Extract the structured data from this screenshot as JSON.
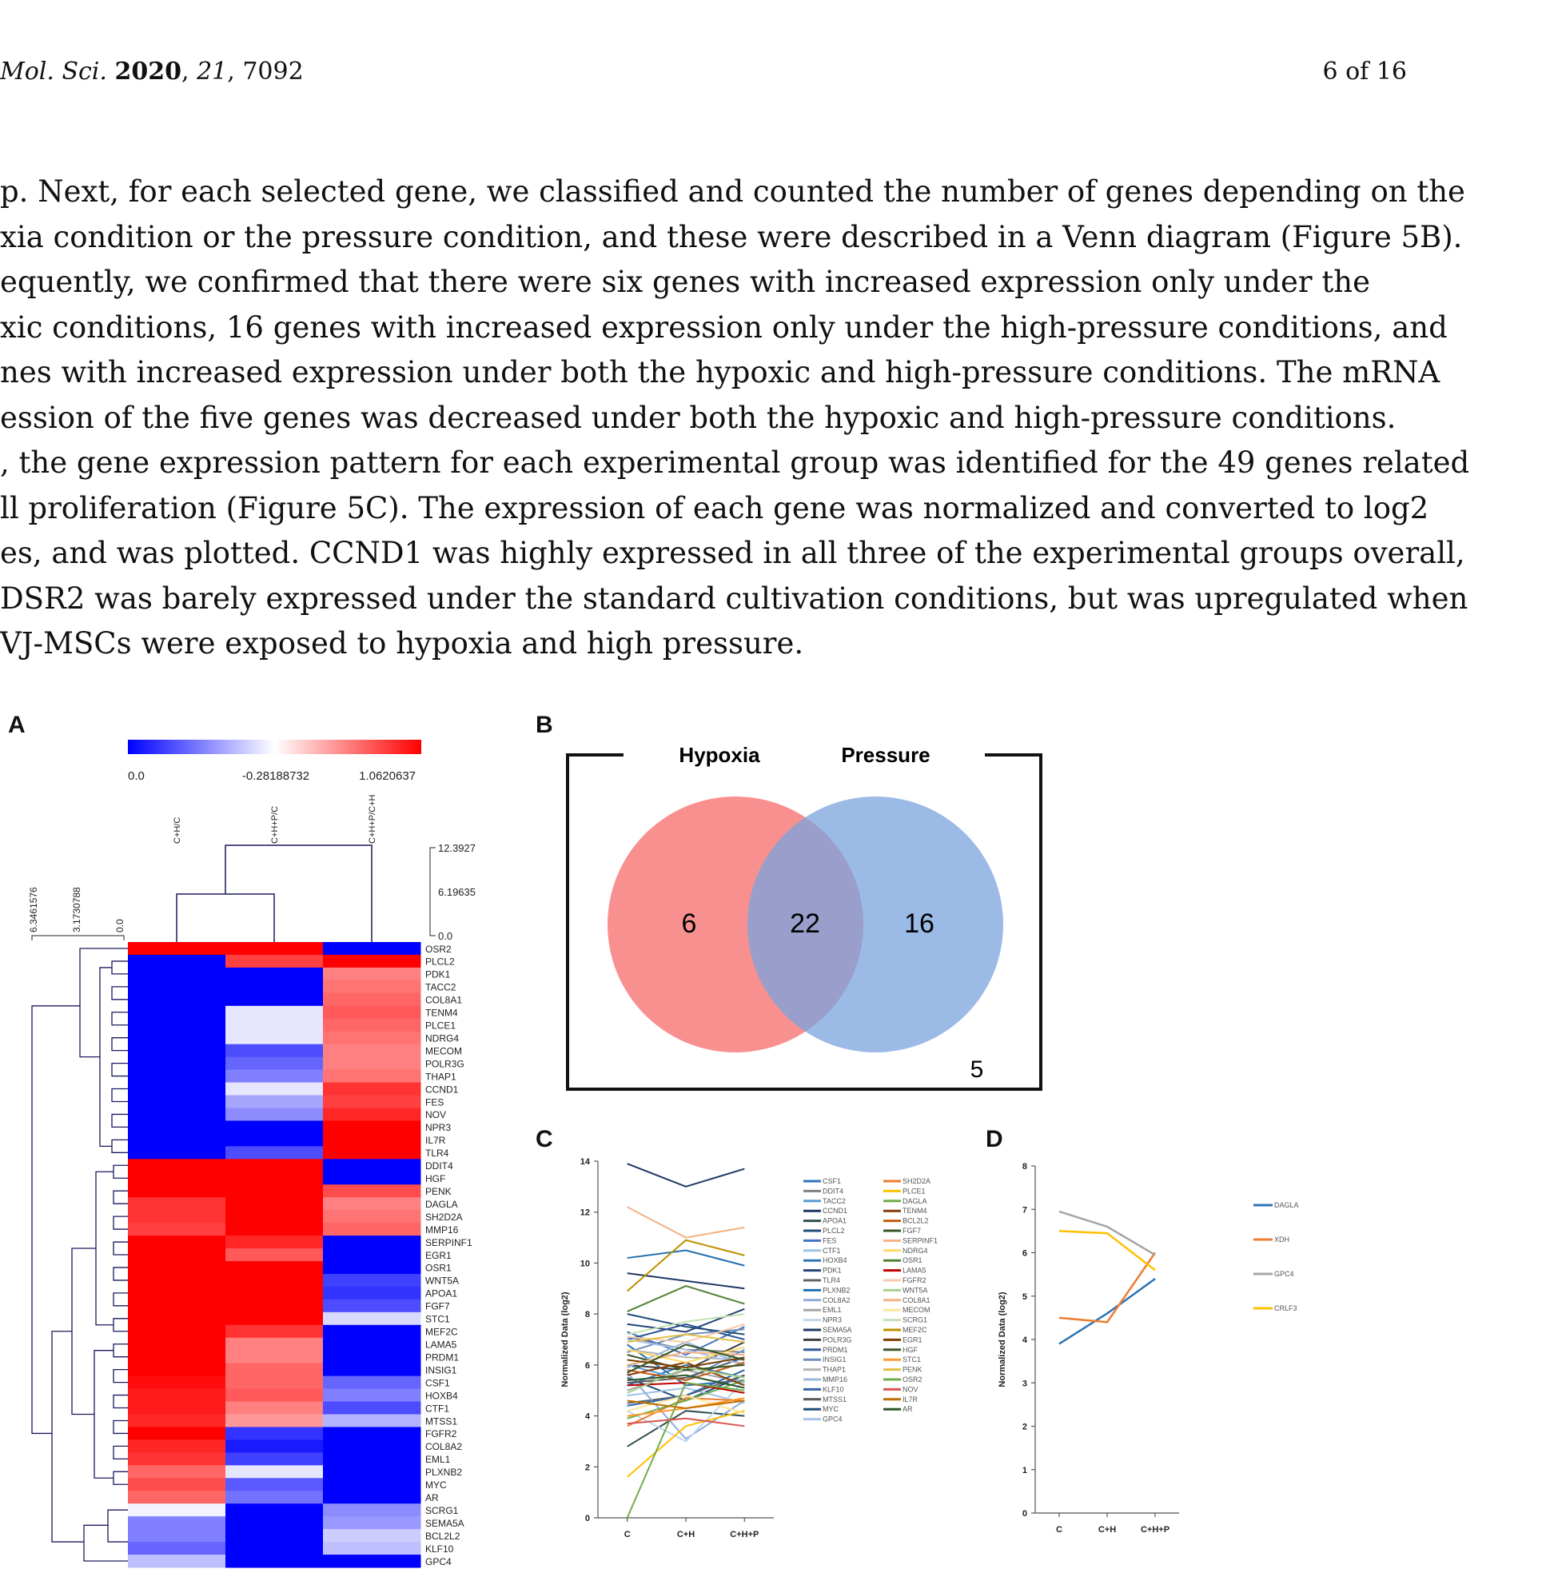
{
  "header": {
    "journal": "Mol. Sci.",
    "year": "2020",
    "volume": "21",
    "article": "7092",
    "page": "6 of 16"
  },
  "paragraph_lines": [
    "p. Next, for each selected gene, we classified and counted the number of genes depending on the",
    "xia condition or the pressure condition, and these were described in a Venn diagram (Figure 5B).",
    "equently, we confirmed that there were six genes with increased expression only under the",
    "xic conditions, 16 genes with increased expression only under the high-pressure conditions, and",
    "nes with increased expression under both the hypoxic and high-pressure conditions. The mRNA",
    "ession of the five genes was decreased under both the hypoxic and high-pressure conditions.",
    ", the gene expression pattern for each experimental group was identified for the 49 genes related",
    "ll proliferation (Figure 5C). The expression of each gene was normalized and converted to log2",
    "es, and was plotted. CCND1 was highly expressed in all three of the experimental groups overall,",
    "DSR2 was barely expressed under the standard cultivation conditions, but was upregulated when",
    "VJ-MSCs were exposed to hypoxia and high pressure."
  ],
  "panels": {
    "a": "A",
    "b": "B",
    "c": "C",
    "d": "D"
  },
  "heatmap": {
    "scale_labels": [
      "0.0",
      "-0.28188732",
      "1.0620637"
    ],
    "columns": [
      "C+H/C",
      "C+H+P/C",
      "C+H+P/C+H"
    ],
    "col_dendro_ticks": [
      "12.3927",
      "6.19635",
      "0.0"
    ],
    "row_dendro_ticks": [
      "6.3461576",
      "3.1730788",
      "0.0"
    ],
    "colors": {
      "low": "#0000ff",
      "mid": "#ffffff",
      "high": "#ff0000"
    },
    "genes": [
      "OSR2",
      "PLCL2",
      "PDK1",
      "TACC2",
      "COL8A1",
      "TENM4",
      "PLCE1",
      "NDRG4",
      "MECOM",
      "POLR3G",
      "THAP1",
      "CCND1",
      "FES",
      "NOV",
      "NPR3",
      "IL7R",
      "TLR4",
      "DDIT4",
      "HGF",
      "PENK",
      "DAGLA",
      "SH2D2A",
      "MMP16",
      "SERPINF1",
      "EGR1",
      "OSR1",
      "WNT5A",
      "APOA1",
      "FGF7",
      "STC1",
      "MEF2C",
      "LAMA5",
      "PRDM1",
      "INSIG1",
      "CSF1",
      "HOXB4",
      "CTF1",
      "MTSS1",
      "FGFR2",
      "COL8A2",
      "EML1",
      "PLXNB2",
      "MYC",
      "AR",
      "SCRG1",
      "SEMA5A",
      "BCL2L2",
      "KLF10",
      "GPC4"
    ],
    "values": [
      [
        1.0,
        1.0,
        -1.0
      ],
      [
        -1.0,
        0.75,
        1.0
      ],
      [
        -1.0,
        -1.0,
        0.5
      ],
      [
        -1.0,
        -1.0,
        0.55
      ],
      [
        -1.0,
        -1.0,
        0.6
      ],
      [
        -1.0,
        -0.1,
        0.65
      ],
      [
        -1.0,
        -0.1,
        0.6
      ],
      [
        -1.0,
        -0.1,
        0.55
      ],
      [
        -1.0,
        -0.7,
        0.5
      ],
      [
        -1.0,
        -0.6,
        0.5
      ],
      [
        -1.0,
        -0.5,
        0.55
      ],
      [
        -1.0,
        -0.1,
        0.8
      ],
      [
        -1.0,
        -0.35,
        0.75
      ],
      [
        -1.0,
        -0.45,
        0.85
      ],
      [
        -1.0,
        -1.0,
        1.0
      ],
      [
        -1.0,
        -1.0,
        1.0
      ],
      [
        -1.0,
        -0.7,
        1.0
      ],
      [
        1.0,
        1.0,
        -1.0
      ],
      [
        1.0,
        1.0,
        -1.0
      ],
      [
        1.0,
        1.0,
        0.7
      ],
      [
        0.8,
        1.0,
        0.5
      ],
      [
        0.8,
        1.0,
        0.55
      ],
      [
        0.75,
        1.0,
        0.6
      ],
      [
        1.0,
        0.85,
        -1.0
      ],
      [
        1.0,
        0.65,
        -1.0
      ],
      [
        1.0,
        1.0,
        -1.0
      ],
      [
        1.0,
        1.0,
        -0.75
      ],
      [
        1.0,
        1.0,
        -0.8
      ],
      [
        1.0,
        1.0,
        -0.7
      ],
      [
        1.0,
        1.0,
        -0.15
      ],
      [
        1.0,
        0.8,
        -1.0
      ],
      [
        1.0,
        0.5,
        -1.0
      ],
      [
        1.0,
        0.5,
        -1.0
      ],
      [
        1.0,
        0.6,
        -1.0
      ],
      [
        0.95,
        0.6,
        -0.6
      ],
      [
        0.9,
        0.65,
        -0.5
      ],
      [
        0.9,
        0.5,
        -0.7
      ],
      [
        0.85,
        0.4,
        -0.3
      ],
      [
        1.0,
        -0.8,
        -1.0
      ],
      [
        0.85,
        -0.9,
        -1.0
      ],
      [
        0.8,
        -0.75,
        -1.0
      ],
      [
        0.6,
        -0.1,
        -1.0
      ],
      [
        0.7,
        -0.65,
        -1.0
      ],
      [
        0.6,
        -0.55,
        -1.0
      ],
      [
        -0.05,
        -1.0,
        -0.45
      ],
      [
        -0.5,
        -1.0,
        -0.4
      ],
      [
        -0.5,
        -1.0,
        -0.2
      ],
      [
        -0.6,
        -1.0,
        -0.25
      ],
      [
        -0.25,
        -1.0,
        -1.0
      ]
    ]
  },
  "venn": {
    "left_label": "Hypoxia",
    "right_label": "Pressure",
    "left_only": "6",
    "overlap": "22",
    "right_only": "16",
    "outside": "5",
    "left_color": "#f87c7c",
    "right_color": "#7aa3de"
  },
  "chart_data": [
    {
      "type": "line",
      "panel": "C",
      "categories": [
        "C",
        "C+H",
        "C+H+P"
      ],
      "ylabel": "Normalized Data (log2)",
      "ylim": [
        0,
        14
      ],
      "yticks": [
        "0",
        "2",
        "4",
        "6",
        "8",
        "10",
        "12",
        "14"
      ],
      "series": [
        {
          "name": "CSF1",
          "color": "#2e75b6",
          "values": [
            5.2,
            6.0,
            5.5
          ]
        },
        {
          "name": "DDIT4",
          "color": "#7f7f7f",
          "values": [
            7.1,
            6.6,
            6.5
          ]
        },
        {
          "name": "TACC2",
          "color": "#5b9bd5",
          "values": [
            6.0,
            5.4,
            6.6
          ]
        },
        {
          "name": "CCND1",
          "color": "#1f3864",
          "values": [
            13.9,
            13.0,
            13.7
          ]
        },
        {
          "name": "APOA1",
          "color": "#2f4f4f",
          "values": [
            2.8,
            4.2,
            4.0
          ]
        },
        {
          "name": "PLCL2",
          "color": "#1f4e79",
          "values": [
            5.5,
            4.6,
            5.6
          ]
        },
        {
          "name": "FES",
          "color": "#4472c4",
          "values": [
            7.3,
            6.4,
            7.5
          ]
        },
        {
          "name": "CTF1",
          "color": "#9dc3e6",
          "values": [
            4.8,
            5.1,
            4.5
          ]
        },
        {
          "name": "HOXB4",
          "color": "#2e75b6",
          "values": [
            6.8,
            5.2,
            5.4
          ]
        },
        {
          "name": "PDK1",
          "color": "#264478",
          "values": [
            7.6,
            7.3,
            8.2
          ]
        },
        {
          "name": "TLR4",
          "color": "#636363",
          "values": [
            4.5,
            4.8,
            5.6
          ]
        },
        {
          "name": "PLXNB2",
          "color": "#1f6fb2",
          "values": [
            10.2,
            10.5,
            9.9
          ]
        },
        {
          "name": "COL8A2",
          "color": "#8faadc",
          "values": [
            5.7,
            3.1,
            4.6
          ]
        },
        {
          "name": "EML1",
          "color": "#a5a5a5",
          "values": [
            5.0,
            5.8,
            5.3
          ]
        },
        {
          "name": "NPR3",
          "color": "#bdd7ee",
          "values": [
            4.2,
            3.0,
            5.4
          ]
        },
        {
          "name": "SEMA5A",
          "color": "#203864",
          "values": [
            9.6,
            9.3,
            9.0
          ]
        },
        {
          "name": "POLR3G",
          "color": "#404040",
          "values": [
            6.0,
            5.8,
            6.9
          ]
        },
        {
          "name": "PRDM1",
          "color": "#2f5597",
          "values": [
            7.0,
            7.6,
            7.0
          ]
        },
        {
          "name": "INSIG1",
          "color": "#6f8fba",
          "values": [
            6.5,
            7.2,
            7.4
          ]
        },
        {
          "name": "THAP1",
          "color": "#b4b4b4",
          "values": [
            6.6,
            6.3,
            6.2
          ]
        },
        {
          "name": "MMP16",
          "color": "#9ab7dc",
          "values": [
            5.9,
            6.9,
            6.0
          ]
        },
        {
          "name": "KLF10",
          "color": "#3465a4",
          "values": [
            4.4,
            4.8,
            5.8
          ]
        },
        {
          "name": "MTSS1",
          "color": "#595959",
          "values": [
            5.3,
            5.5,
            6.3
          ]
        },
        {
          "name": "MYC",
          "color": "#1f4e79",
          "values": [
            8.0,
            7.5,
            7.2
          ]
        },
        {
          "name": "GPC4",
          "color": "#a9c4eb",
          "values": [
            7.0,
            6.6,
            6.0
          ]
        },
        {
          "name": "SH2D2A",
          "color": "#ed7d31",
          "values": [
            3.6,
            4.7,
            4.6
          ]
        },
        {
          "name": "PLCE1",
          "color": "#ffc000",
          "values": [
            1.6,
            3.6,
            4.2
          ]
        },
        {
          "name": "DAGLA",
          "color": "#70ad47",
          "values": [
            3.9,
            4.6,
            5.4
          ]
        },
        {
          "name": "TENM4",
          "color": "#843c0c",
          "values": [
            5.6,
            6.1,
            5.2
          ]
        },
        {
          "name": "BCL2L2",
          "color": "#c55a11",
          "values": [
            5.8,
            5.4,
            6.1
          ]
        },
        {
          "name": "FGF7",
          "color": "#375623",
          "values": [
            6.4,
            5.8,
            6.0
          ]
        },
        {
          "name": "SERPINF1",
          "color": "#f4b183",
          "values": [
            12.2,
            11.0,
            11.4
          ]
        },
        {
          "name": "NDRG4",
          "color": "#ffd966",
          "values": [
            6.6,
            6.1,
            6.7
          ]
        },
        {
          "name": "OSR1",
          "color": "#548235",
          "values": [
            8.1,
            9.1,
            8.4
          ]
        },
        {
          "name": "LAMA5",
          "color": "#c00000",
          "values": [
            5.2,
            5.3,
            4.9
          ]
        },
        {
          "name": "FGFR2",
          "color": "#f8cbad",
          "values": [
            7.1,
            6.9,
            7.6
          ]
        },
        {
          "name": "WNT5A",
          "color": "#a9d18e",
          "values": [
            4.9,
            5.9,
            5.5
          ]
        },
        {
          "name": "COL8A1",
          "color": "#f4b183",
          "values": [
            6.0,
            6.5,
            6.4
          ]
        },
        {
          "name": "MECOM",
          "color": "#ffe699",
          "values": [
            4.2,
            4.8,
            4.1
          ]
        },
        {
          "name": "SCRG1",
          "color": "#c5e0b4",
          "values": [
            7.2,
            7.7,
            8.0
          ]
        },
        {
          "name": "MEF2C",
          "color": "#bf8f00",
          "values": [
            8.9,
            10.9,
            10.3
          ]
        },
        {
          "name": "EGR1",
          "color": "#7b3f00",
          "values": [
            6.2,
            5.9,
            6.3
          ]
        },
        {
          "name": "HGF",
          "color": "#385723",
          "values": [
            5.7,
            6.8,
            6.2
          ]
        },
        {
          "name": "STC1",
          "color": "#ff9933",
          "values": [
            4.0,
            4.3,
            4.7
          ]
        },
        {
          "name": "PENK",
          "color": "#e2c044",
          "values": [
            6.9,
            7.2,
            6.9
          ]
        },
        {
          "name": "OSR2",
          "color": "#70ad47",
          "values": [
            0.0,
            5.3,
            5.0
          ]
        },
        {
          "name": "NOV",
          "color": "#d9534f",
          "values": [
            3.7,
            3.9,
            3.6
          ]
        },
        {
          "name": "IL7R",
          "color": "#c07000",
          "values": [
            4.6,
            4.3,
            4.6
          ]
        },
        {
          "name": "AR",
          "color": "#2d572c",
          "values": [
            5.4,
            5.6,
            5.1
          ]
        }
      ]
    },
    {
      "type": "line",
      "panel": "D",
      "categories": [
        "C",
        "C+H",
        "C+H+P"
      ],
      "ylabel": "Normalized Data (log2)",
      "ylim": [
        0,
        8
      ],
      "yticks": [
        "0",
        "1",
        "2",
        "3",
        "4",
        "5",
        "6",
        "7",
        "8"
      ],
      "series": [
        {
          "name": "DAGLA",
          "color": "#2e75b6",
          "values": [
            3.9,
            4.6,
            5.4
          ]
        },
        {
          "name": "XDH",
          "color": "#ed7d31",
          "values": [
            4.5,
            4.4,
            6.0
          ]
        },
        {
          "name": "GPC4",
          "color": "#a5a5a5",
          "values": [
            6.95,
            6.6,
            5.95
          ]
        },
        {
          "name": "CRLF3",
          "color": "#ffc000",
          "values": [
            6.5,
            6.45,
            5.6
          ]
        }
      ]
    }
  ]
}
